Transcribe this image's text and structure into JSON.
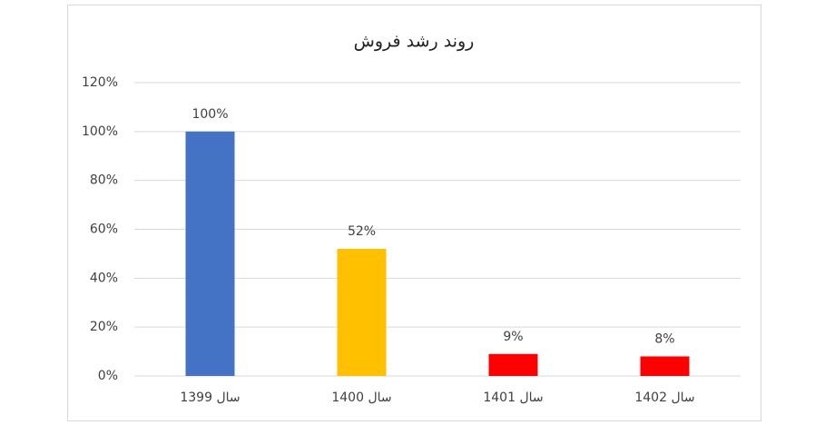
{
  "chart_data": {
    "type": "bar",
    "title": "روند رشد فروش",
    "categories": [
      "سال 1399",
      "سال 1400",
      "سال 1401",
      "سال 1402"
    ],
    "values": [
      100,
      52,
      9,
      8
    ],
    "value_labels": [
      "100%",
      "52%",
      "9%",
      "8%"
    ],
    "colors": [
      "#4472c4",
      "#ffc000",
      "#ff0000",
      "#ff0000"
    ],
    "ylim": [
      0,
      120
    ],
    "yticks": [
      {
        "value": 0,
        "label": "0%"
      },
      {
        "value": 20,
        "label": "20%"
      },
      {
        "value": 40,
        "label": "40%"
      },
      {
        "value": 60,
        "label": "60%"
      },
      {
        "value": 80,
        "label": "80%"
      },
      {
        "value": 100,
        "label": "100%"
      },
      {
        "value": 120,
        "label": "120%"
      }
    ],
    "grid": true
  }
}
